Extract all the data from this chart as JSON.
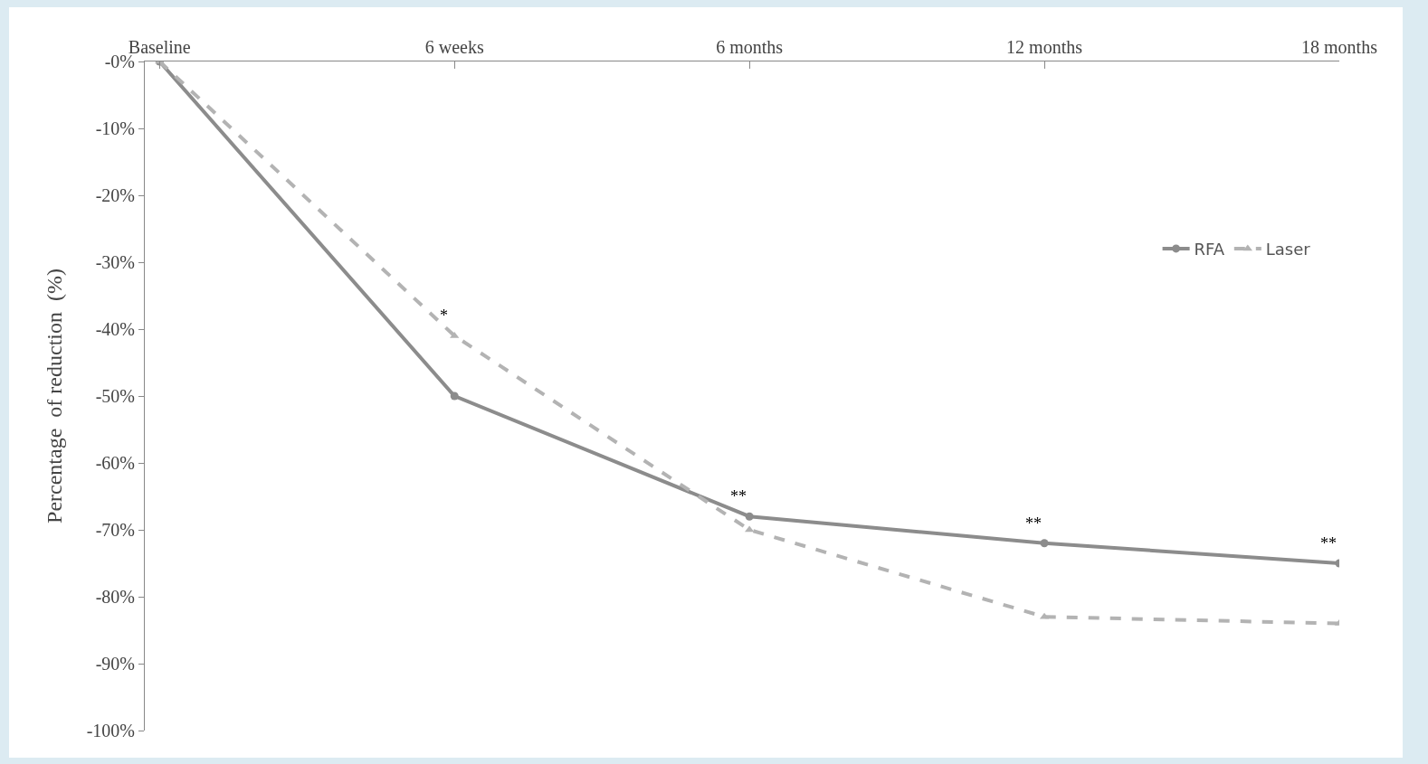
{
  "chart_data": {
    "type": "line",
    "categories": [
      "Baseline",
      "6 weeks",
      "6 months",
      "12 months",
      "18 months"
    ],
    "series": [
      {
        "name": "RFA",
        "color": "#8c8c8c",
        "marker": "circle",
        "line_style": "solid",
        "values": [
          0,
          -50,
          -68,
          -72,
          -75
        ]
      },
      {
        "name": "Laser",
        "color": "#b3b3b3",
        "marker": "triangle",
        "line_style": "dashed",
        "values": [
          0,
          -41,
          -70,
          -83,
          -84
        ]
      }
    ],
    "ylabel": "Percentage  of reduction  (%)",
    "ylim": [
      -100,
      0
    ],
    "yticks": [
      {
        "value": 0,
        "label": "-0%"
      },
      {
        "value": -10,
        "label": "-10%"
      },
      {
        "value": -20,
        "label": "-20%"
      },
      {
        "value": -30,
        "label": "-30%"
      },
      {
        "value": -40,
        "label": "-40%"
      },
      {
        "value": -50,
        "label": "-50%"
      },
      {
        "value": -60,
        "label": "-60%"
      },
      {
        "value": -70,
        "label": "-70%"
      },
      {
        "value": -80,
        "label": "-80%"
      },
      {
        "value": -90,
        "label": "-90%"
      },
      {
        "value": -100,
        "label": "-100%"
      }
    ],
    "annotations": [
      {
        "text": "*",
        "x": "6 weeks",
        "y": -41
      },
      {
        "text": "**",
        "x": "6 months",
        "y": -68
      },
      {
        "text": "**",
        "x": "12 months",
        "y": -72
      },
      {
        "text": "**",
        "x": "18 months",
        "y": -75
      }
    ],
    "grid": false,
    "legend": "right"
  }
}
